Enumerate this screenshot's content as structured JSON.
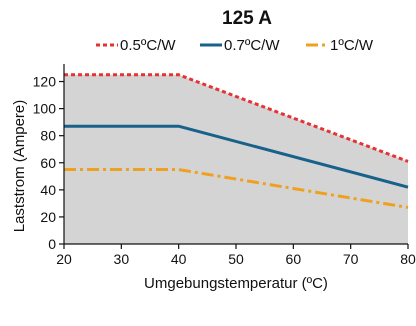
{
  "chart_data": {
    "type": "line",
    "title": "125 A",
    "xlabel": "Umgebungstemperatur (ºC)",
    "ylabel": "Laststrom (Ampere)",
    "xlim": [
      20,
      80
    ],
    "ylim": [
      0,
      130
    ],
    "xticks": [
      "20",
      "30",
      "40",
      "50",
      "60",
      "70",
      "80"
    ],
    "yticks": [
      "0",
      "20",
      "40",
      "60",
      "80",
      "100",
      "120"
    ],
    "grid": false,
    "legend_position": "top",
    "shaded_area_color": "#d4d4d4",
    "series": [
      {
        "name": "0.5ºC/W",
        "color": "#e63232",
        "style": "dotted",
        "x": [
          20,
          40,
          80
        ],
        "y": [
          125,
          125,
          61
        ]
      },
      {
        "name": "0.7ºC/W",
        "color": "#17618b",
        "style": "solid",
        "x": [
          20,
          40,
          80
        ],
        "y": [
          87,
          87,
          42
        ]
      },
      {
        "name": "1ºC/W",
        "color": "#f0a020",
        "style": "dashdot",
        "x": [
          20,
          40,
          80
        ],
        "y": [
          55,
          55,
          27
        ]
      }
    ]
  }
}
